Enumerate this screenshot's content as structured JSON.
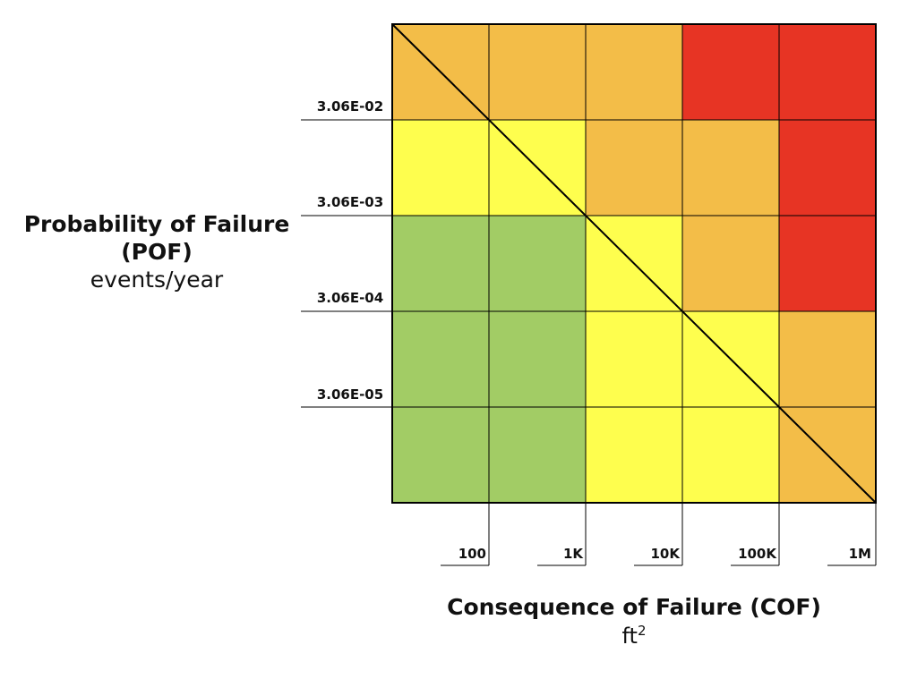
{
  "y_axis": {
    "title_line1": "Probability of Failure",
    "title_line2": "(POF)",
    "unit": "events/year",
    "ticks": [
      "3.06E-02",
      "3.06E-03",
      "3.06E-04",
      "3.06E-05"
    ]
  },
  "x_axis": {
    "title": "Consequence of Failure (COF)",
    "unit_base": "ft",
    "unit_exp": "2",
    "ticks": [
      "100",
      "1K",
      "10K",
      "100K",
      "1M"
    ]
  },
  "colors": {
    "green": "#a2cc65",
    "yellow": "#fefe4e",
    "orange": "#f3bd48",
    "red": "#e73424",
    "grid": "#000000"
  },
  "matrix": [
    [
      "orange",
      "orange",
      "orange",
      "red",
      "red"
    ],
    [
      "yellow",
      "yellow",
      "orange",
      "orange",
      "red"
    ],
    [
      "green",
      "green",
      "yellow",
      "orange",
      "red"
    ],
    [
      "green",
      "green",
      "yellow",
      "yellow",
      "orange"
    ],
    [
      "green",
      "green",
      "yellow",
      "yellow",
      "orange"
    ]
  ]
}
